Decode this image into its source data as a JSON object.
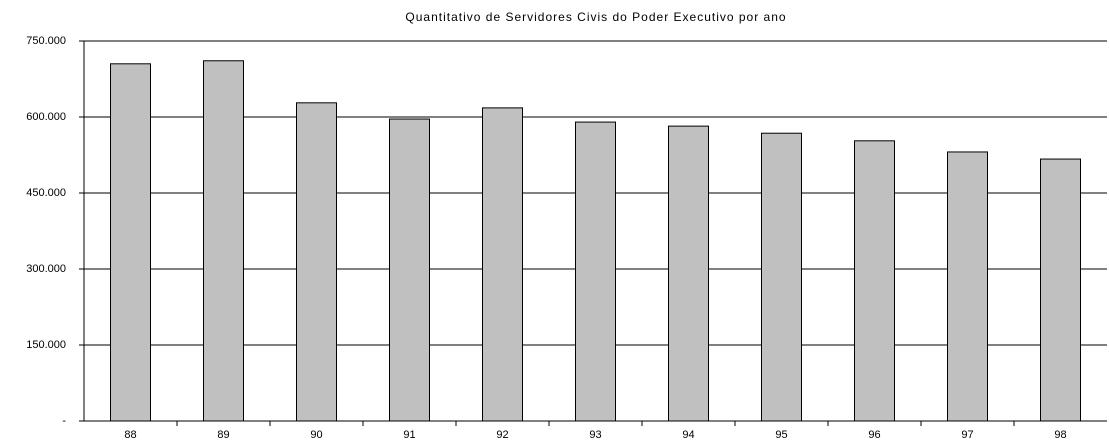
{
  "chart_data": {
    "type": "bar",
    "title": "Quantitativo de Servidores Civis do Poder Executivo por ano",
    "categories": [
      "88",
      "89",
      "90",
      "91",
      "92",
      "93",
      "94",
      "95",
      "96",
      "97",
      "98"
    ],
    "values": [
      705000,
      711000,
      628000,
      596000,
      618000,
      590000,
      582000,
      568000,
      553000,
      531000,
      517000
    ],
    "color": "#c0c0c0",
    "ylim": [
      0,
      750000
    ],
    "yticks": [
      {
        "value": 0,
        "label": "-"
      },
      {
        "value": 150000,
        "label": "150.000"
      },
      {
        "value": 300000,
        "label": "300.000"
      },
      {
        "value": 450000,
        "label": "450.000"
      },
      {
        "value": 600000,
        "label": "600.000"
      },
      {
        "value": 750000,
        "label": "750.000"
      }
    ],
    "grid": true
  }
}
